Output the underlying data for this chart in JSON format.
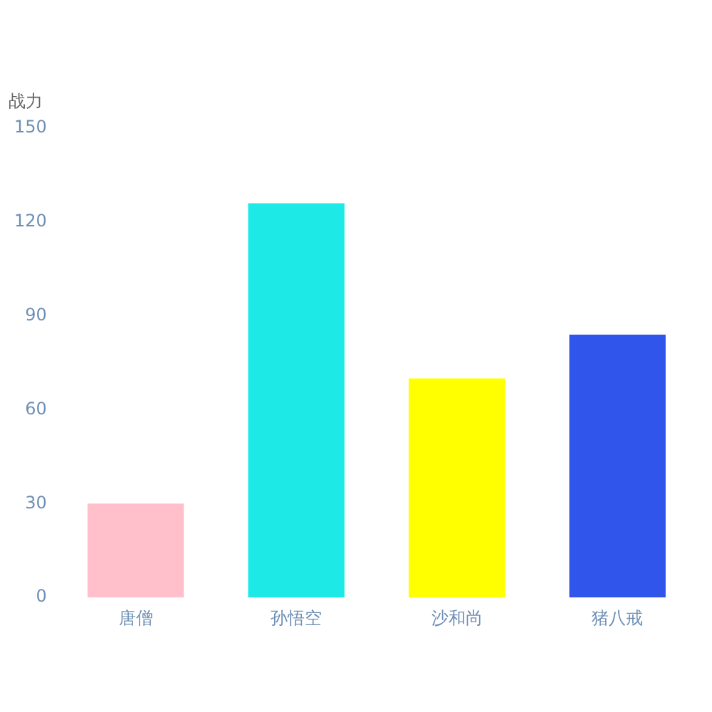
{
  "chart_data": {
    "type": "bar",
    "ylabel": "战力",
    "categories": [
      "唐僧",
      "孙悟空",
      "沙和尚",
      "猪八戒"
    ],
    "values": [
      30,
      126,
      70,
      84
    ],
    "colors": [
      "#ffc0cb",
      "#1de9e6",
      "#ffff00",
      "#2f55eb"
    ],
    "ylim": [
      0,
      150
    ],
    "yticks": [
      0,
      30,
      60,
      90,
      120,
      150
    ],
    "grid": false
  }
}
